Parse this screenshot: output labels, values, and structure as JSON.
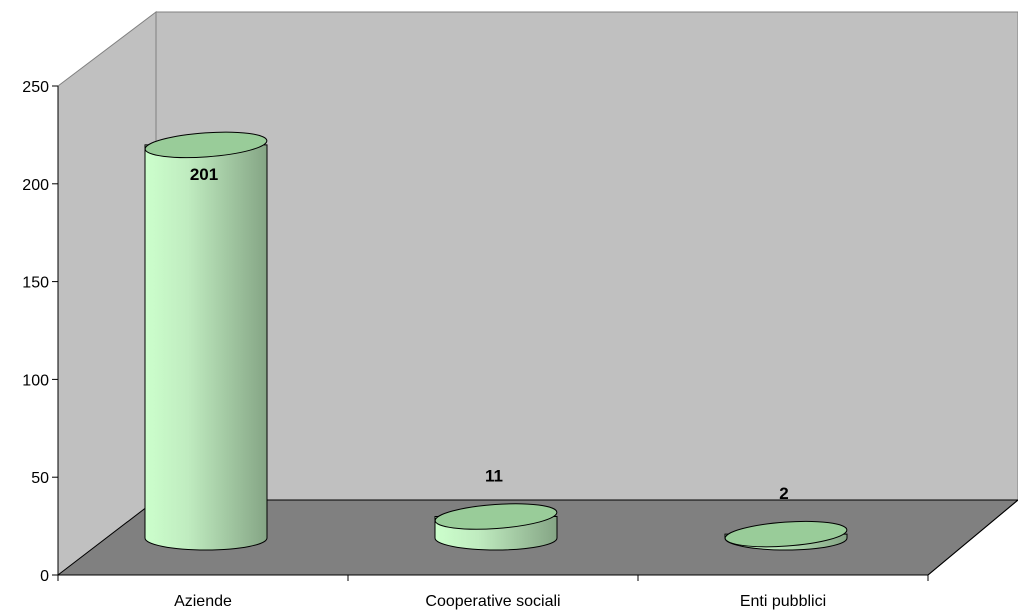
{
  "chart_data": {
    "type": "bar",
    "bar_shape": "cylinder-3d",
    "categories": [
      "Aziende",
      "Cooperative sociali",
      "Enti pubblici"
    ],
    "values": [
      201,
      11,
      2
    ],
    "data_labels": [
      "201",
      "11",
      "2"
    ],
    "ylim": [
      0,
      250
    ],
    "y_ticks": [
      0,
      50,
      100,
      150,
      200,
      250
    ],
    "y_tick_labels": [
      "0",
      "50",
      "100",
      "150",
      "200",
      "250"
    ],
    "grid": false,
    "legend": "none",
    "colors": {
      "back_wall": "#c0c0c0",
      "side_wall": "#c0c0c0",
      "floor": "#808080",
      "bar_light": "#ccffcc",
      "bar_dark": "#85a585",
      "bar_top": "#99cc99",
      "outline": "#000000"
    }
  }
}
